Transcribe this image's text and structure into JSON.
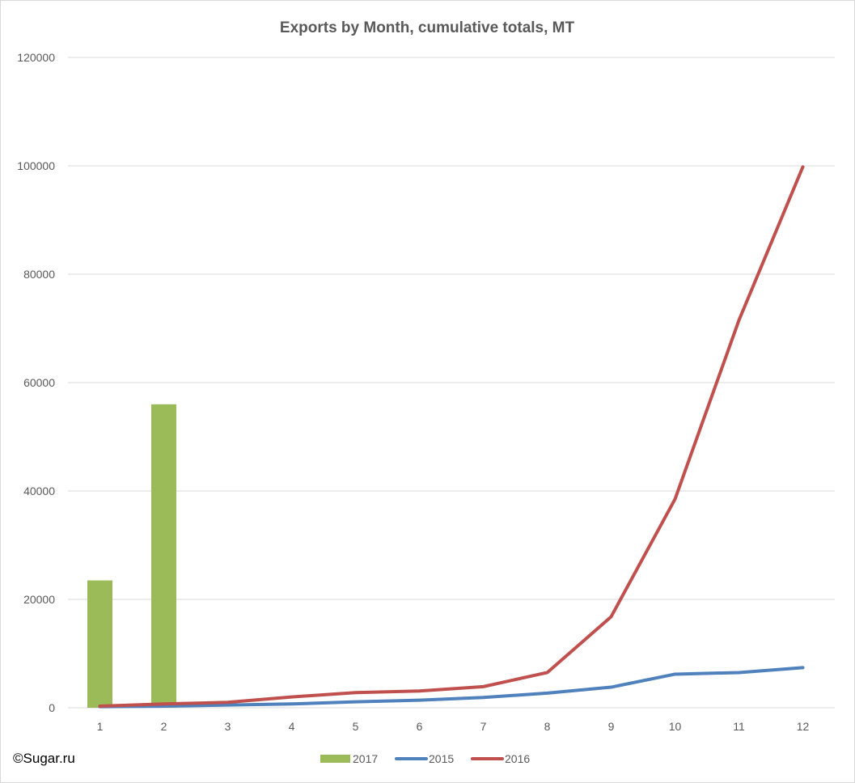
{
  "credit": "©Sugar.ru",
  "colors": {
    "bar2017": "#9bbb59",
    "line2015": "#4f81bd",
    "line2016": "#c0504d",
    "grid": "#d9d9d9",
    "text": "#595959"
  },
  "chart_data": {
    "type": "bar+line",
    "title": "Exports by Month, cumulative totals, MT",
    "xlabel": "",
    "ylabel": "",
    "categories": [
      "1",
      "2",
      "3",
      "4",
      "5",
      "6",
      "7",
      "8",
      "9",
      "10",
      "11",
      "12"
    ],
    "ylim": [
      0,
      120000
    ],
    "yticks": [
      0,
      20000,
      40000,
      60000,
      80000,
      100000,
      120000
    ],
    "grid": true,
    "legend_position": "bottom",
    "series": [
      {
        "name": "2017",
        "type": "bar",
        "values": [
          23500,
          56000,
          null,
          null,
          null,
          null,
          null,
          null,
          null,
          null,
          null,
          null
        ]
      },
      {
        "name": "2015",
        "type": "line",
        "values": [
          200,
          300,
          500,
          700,
          1100,
          1400,
          1900,
          2700,
          3800,
          6200,
          6500,
          7400
        ]
      },
      {
        "name": "2016",
        "type": "line",
        "values": [
          300,
          700,
          1000,
          2000,
          2800,
          3100,
          3900,
          6500,
          16800,
          38500,
          71500,
          99800
        ]
      }
    ]
  }
}
